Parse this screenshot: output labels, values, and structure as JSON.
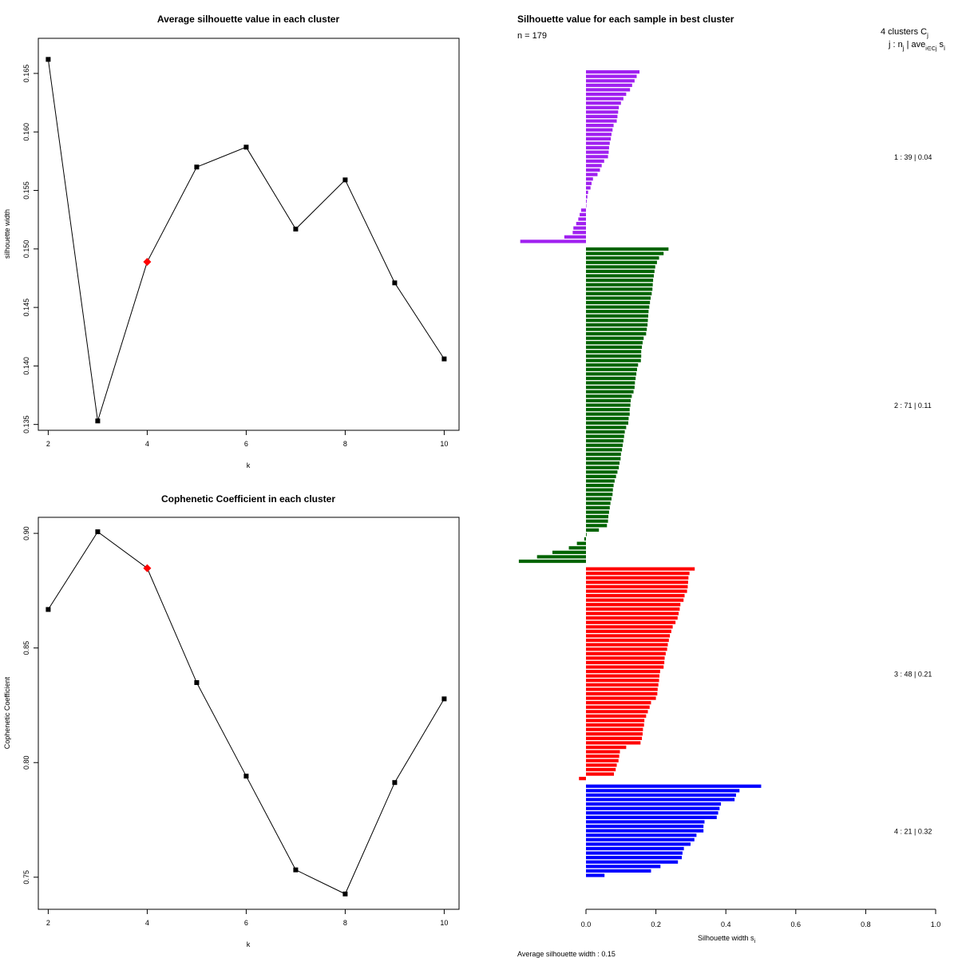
{
  "chart_data": [
    {
      "id": "avg_silhouette",
      "type": "line",
      "title": "Average silhouette value in each cluster",
      "xlabel": "k",
      "ylabel": "silhouette width",
      "x": [
        2,
        3,
        4,
        5,
        6,
        7,
        8,
        9,
        10
      ],
      "y": [
        0.1662,
        0.1353,
        0.1489,
        0.157,
        0.1587,
        0.1517,
        0.1559,
        0.1471,
        0.1406
      ],
      "highlight_index": 2,
      "highlight_color": "#ff0000",
      "xlim": [
        1.8,
        10.3
      ],
      "ylim": [
        0.1345,
        0.168
      ],
      "xticks": [
        "2",
        "4",
        "6",
        "8",
        "10"
      ],
      "yticks": [
        "0.135",
        "0.140",
        "0.145",
        "0.150",
        "0.155",
        "0.160",
        "0.165"
      ]
    },
    {
      "id": "cophenetic",
      "type": "line",
      "title": "Cophenetic Coefficient in each cluster",
      "xlabel": "k",
      "ylabel": "Cophenetic Coefficient",
      "x": [
        2,
        3,
        4,
        5,
        6,
        7,
        8,
        9,
        10
      ],
      "y": [
        0.8668,
        0.9007,
        0.8848,
        0.8349,
        0.7941,
        0.7532,
        0.7427,
        0.7913,
        0.8278
      ],
      "highlight_index": 2,
      "highlight_color": "#ff0000",
      "xlim": [
        1.8,
        10.3
      ],
      "ylim": [
        0.736,
        0.907
      ],
      "xticks": [
        "2",
        "4",
        "6",
        "8",
        "10"
      ],
      "yticks": [
        "0.75",
        "0.80",
        "0.85",
        "0.90"
      ]
    },
    {
      "id": "silhouette_samples",
      "type": "bar",
      "orientation": "horizontal",
      "title": "Silhouette value for each sample in best cluster",
      "n_label": "n = 179",
      "header_line1": "4 clusters C",
      "header_sub1": "j",
      "header_line2": "j : n",
      "header_sub2": "j",
      "header_line2b": " | ave",
      "header_sub3": "i∈Cj",
      "header_line2c": " s",
      "header_sub4": "i",
      "xlabel": "Silhouette width s",
      "xlabel_sub": "i",
      "footer": "Average silhouette width :  0.15",
      "xlim": [
        -0.2,
        1.0
      ],
      "xticks": [
        "0.0",
        "0.2",
        "0.4",
        "0.6",
        "0.8",
        "1.0"
      ],
      "clusters": [
        {
          "label": "1 :  39  |  0.04",
          "color": "#a020f0",
          "values": [
            0.153,
            0.145,
            0.139,
            0.132,
            0.126,
            0.115,
            0.107,
            0.1,
            0.094,
            0.092,
            0.09,
            0.088,
            0.079,
            0.076,
            0.073,
            0.071,
            0.068,
            0.066,
            0.065,
            0.063,
            0.052,
            0.045,
            0.04,
            0.033,
            0.02,
            0.016,
            0.013,
            0.006,
            0.004,
            0.002,
            0.0,
            -0.014,
            -0.018,
            -0.022,
            -0.028,
            -0.036,
            -0.038,
            -0.062,
            -0.188
          ]
        },
        {
          "label": "2 :  71  |  0.11",
          "color": "#006400",
          "values": [
            0.236,
            0.222,
            0.209,
            0.203,
            0.198,
            0.196,
            0.194,
            0.192,
            0.191,
            0.19,
            0.188,
            0.185,
            0.183,
            0.181,
            0.179,
            0.178,
            0.177,
            0.176,
            0.174,
            0.172,
            0.165,
            0.162,
            0.16,
            0.158,
            0.158,
            0.157,
            0.149,
            0.146,
            0.144,
            0.142,
            0.14,
            0.139,
            0.136,
            0.131,
            0.128,
            0.127,
            0.125,
            0.125,
            0.122,
            0.121,
            0.115,
            0.111,
            0.109,
            0.107,
            0.105,
            0.103,
            0.1,
            0.099,
            0.096,
            0.094,
            0.09,
            0.086,
            0.082,
            0.079,
            0.077,
            0.076,
            0.073,
            0.07,
            0.068,
            0.066,
            0.064,
            0.063,
            0.06,
            0.037,
            0.002,
            -0.005,
            -0.026,
            -0.049,
            -0.096,
            -0.14,
            -0.192
          ]
        },
        {
          "label": "3 :  48  |  0.21",
          "color": "#ff0000",
          "values": [
            0.311,
            0.296,
            0.293,
            0.292,
            0.291,
            0.289,
            0.282,
            0.279,
            0.27,
            0.268,
            0.265,
            0.262,
            0.256,
            0.248,
            0.244,
            0.24,
            0.237,
            0.234,
            0.232,
            0.228,
            0.225,
            0.224,
            0.222,
            0.212,
            0.21,
            0.209,
            0.207,
            0.205,
            0.204,
            0.2,
            0.186,
            0.182,
            0.177,
            0.172,
            0.167,
            0.166,
            0.163,
            0.162,
            0.16,
            0.156,
            0.115,
            0.097,
            0.095,
            0.093,
            0.088,
            0.085,
            0.08,
            -0.02
          ]
        },
        {
          "label": "4 :  21  |  0.32",
          "color": "#0000ff",
          "values": [
            0.501,
            0.439,
            0.429,
            0.425,
            0.386,
            0.382,
            0.378,
            0.374,
            0.339,
            0.336,
            0.336,
            0.316,
            0.31,
            0.299,
            0.28,
            0.276,
            0.274,
            0.263,
            0.213,
            0.186,
            0.053
          ]
        }
      ]
    }
  ]
}
